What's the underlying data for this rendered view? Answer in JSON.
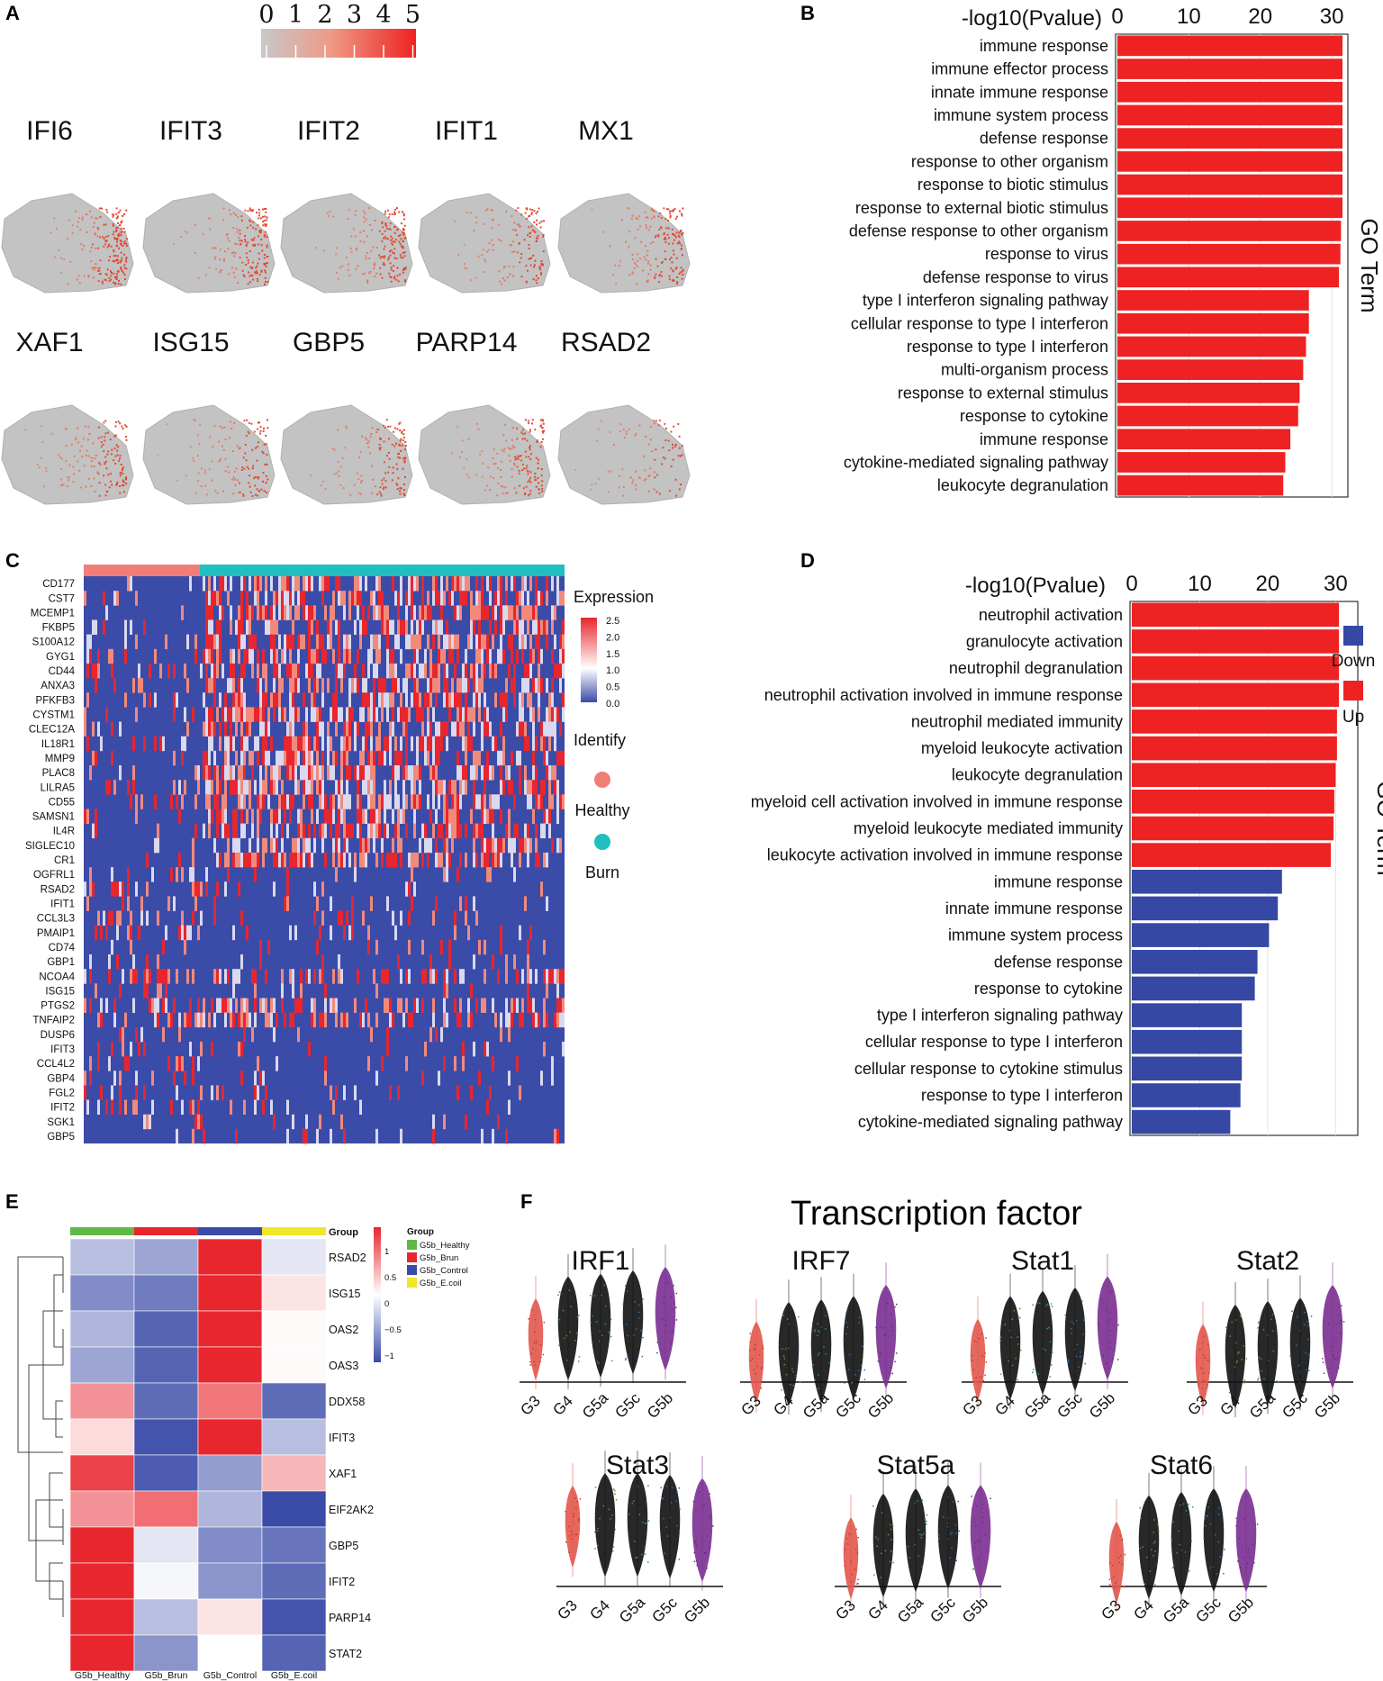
{
  "colors": {
    "red": "#ee2222",
    "blue": "#3548a4",
    "heat_red": "#e8262e",
    "grey": "#c3c3c3",
    "healthy": "#f07e76",
    "burn": "#1fbfbf"
  },
  "panel_a": {
    "letter": "A",
    "scale_ticks": [
      "0",
      "1",
      "2",
      "3",
      "4",
      "5"
    ],
    "genes_row1": [
      "IFI6",
      "IFIT3",
      "IFIT2",
      "IFIT1",
      "MX1"
    ],
    "genes_row2": [
      "XAF1",
      "ISG15",
      "GBP5",
      "PARP14",
      "RSAD2"
    ]
  },
  "panel_c": {
    "letter": "C",
    "legend_title": "Expression",
    "legend_ticks": [
      "2.5",
      "2.0",
      "1.5",
      "1.0",
      "0.5",
      "0.0"
    ],
    "identify_title": "Identify",
    "group_labels": [
      "Healthy",
      "Burn"
    ],
    "genes": [
      "CD177",
      "CST7",
      "MCEMP1",
      "FKBP5",
      "S100A12",
      "GYG1",
      "CD44",
      "ANXA3",
      "PFKFB3",
      "CYSTM1",
      "CLEC12A",
      "IL18R1",
      "MMP9",
      "PLAC8",
      "LILRA5",
      "CD55",
      "SAMSN1",
      "IL4R",
      "SIGLEC10",
      "CR1",
      "OGFRL1",
      "RSAD2",
      "IFIT1",
      "CCL3L3",
      "PMAIP1",
      "CD74",
      "GBP1",
      "NCOA4",
      "ISG15",
      "PTGS2",
      "TNFAIP2",
      "DUSP6",
      "IFIT3",
      "CCL4L2",
      "GBP4",
      "FGL2",
      "IFIT2",
      "SGK1",
      "GBP5"
    ]
  },
  "panel_e": {
    "letter": "E",
    "group_header": "Group",
    "legend_title": "Group",
    "legend_items": [
      "G5b_Healthy",
      "G5b_Brun",
      "G5b_Control",
      "G5b_E.coil"
    ],
    "colorbar_ticks": [
      "1",
      "0.5",
      "0",
      "−0.5",
      "−1"
    ],
    "columns": [
      "G5b_Healthy",
      "G5b_Brun",
      "G5b_Control",
      "G5b_E.coil"
    ],
    "rows": [
      "RSAD2",
      "ISG15",
      "OAS2",
      "OAS3",
      "DDX58",
      "IFIT3",
      "XAF1",
      "EIF2AK2",
      "GBP5",
      "IFIT2",
      "PARP14",
      "STAT2"
    ]
  },
  "panel_f": {
    "letter": "F",
    "title": "Transcription factor",
    "groups": [
      "G3",
      "G4",
      "G5a",
      "G5c",
      "G5b"
    ],
    "factors": [
      "IRF1",
      "IRF7",
      "Stat1",
      "Stat2",
      "Stat3",
      "Stat5a",
      "Stat6"
    ]
  },
  "chart_data": [
    {
      "panel": "B",
      "type": "bar",
      "orientation": "horizontal",
      "title": "",
      "xlabel": "-log10(Pvalue)",
      "ylabel": "GO Term",
      "xlim": [
        0,
        32
      ],
      "xticks": [
        "0",
        "10",
        "20",
        "30"
      ],
      "categories": [
        "immune response",
        "immune effector process",
        "innate immune response",
        "immune system process",
        "defense response",
        "response to other organism",
        "response to biotic stimulus",
        "response to external biotic stimulus",
        "defense response to other organism",
        "response to virus",
        "defense response to virus",
        "type I interferon signaling pathway",
        "cellular response to type I interferon",
        "response to type I interferon",
        "multi-organism process",
        "response to external stimulus",
        "response to cytokine",
        "immune response",
        "cytokine-mediated signaling pathway",
        "leukocyte degranulation"
      ],
      "values": [
        31.5,
        31.5,
        31.5,
        31.5,
        31.5,
        31.5,
        31.5,
        31.5,
        31.3,
        31.2,
        31.0,
        26.8,
        26.8,
        26.4,
        26.0,
        25.5,
        25.3,
        24.2,
        23.5,
        23.2
      ],
      "color": "#ee2222"
    },
    {
      "panel": "D",
      "type": "bar",
      "orientation": "horizontal",
      "title": "",
      "xlabel": "-log10(Pvalue)",
      "ylabel": "GO Term",
      "xlim": [
        0,
        33
      ],
      "xticks": [
        "0",
        "10",
        "20",
        "30"
      ],
      "legend": [
        "Down",
        "Up"
      ],
      "categories": [
        "neutrophil activation",
        "granulocyte activation",
        "neutrophil degranulation",
        "neutrophil activation involved in immune response",
        "neutrophil mediated immunity",
        "myeloid leukocyte activation",
        "leukocyte degranulation",
        "myeloid cell activation involved in immune response",
        "myeloid leukocyte mediated immunity",
        "leukocyte activation involved in immune response",
        "immune response",
        "innate immune response",
        "immune system process",
        "defense response",
        "response to cytokine",
        "type I interferon signaling pathway",
        "cellular response to type I interferon",
        "cellular response to cytokine stimulus",
        "response to type I interferon",
        "cytokine-mediated signaling pathway"
      ],
      "values": [
        30.5,
        30.5,
        30.5,
        30.5,
        30.2,
        30.2,
        30.0,
        29.8,
        29.7,
        29.3,
        22.1,
        21.5,
        20.2,
        18.5,
        18.1,
        16.2,
        16.2,
        16.2,
        16.0,
        14.5
      ],
      "direction": [
        "Up",
        "Up",
        "Up",
        "Up",
        "Up",
        "Up",
        "Up",
        "Up",
        "Up",
        "Up",
        "Down",
        "Down",
        "Down",
        "Down",
        "Down",
        "Down",
        "Down",
        "Down",
        "Down",
        "Down"
      ]
    },
    {
      "panel": "E",
      "type": "heatmap",
      "rows": [
        "RSAD2",
        "ISG15",
        "OAS2",
        "OAS3",
        "DDX58",
        "IFIT3",
        "XAF1",
        "EIF2AK2",
        "GBP5",
        "IFIT2",
        "PARP14",
        "STAT2"
      ],
      "columns": [
        "G5b_Healthy",
        "G5b_Brun",
        "G5b_Control",
        "G5b_E.coil"
      ],
      "values": [
        [
          -0.4,
          -0.55,
          1.3,
          -0.15
        ],
        [
          -0.7,
          -0.8,
          1.3,
          0.15
        ],
        [
          -0.45,
          -0.95,
          1.3,
          0.03
        ],
        [
          -0.55,
          -0.95,
          1.3,
          0.03
        ],
        [
          0.6,
          -0.9,
          0.75,
          -0.9
        ],
        [
          0.2,
          -1.05,
          1.2,
          -0.4
        ],
        [
          1.05,
          -1.0,
          -0.6,
          0.4
        ],
        [
          0.6,
          0.8,
          -0.45,
          -1.1
        ],
        [
          1.3,
          -0.15,
          -0.7,
          -0.85
        ],
        [
          1.3,
          -0.05,
          -0.65,
          -0.9
        ],
        [
          1.25,
          -0.4,
          0.15,
          -1.05
        ],
        [
          1.3,
          -0.65,
          0.0,
          -0.95
        ]
      ],
      "vlim": [
        -1,
        1
      ]
    },
    {
      "panel": "F",
      "type": "violin",
      "title": "Transcription factor",
      "categories": [
        "G3",
        "G4",
        "G5a",
        "G5c",
        "G5b"
      ],
      "series": [
        {
          "name": "IRF1",
          "medians": [
            0.42,
            0.55,
            0.58,
            0.62,
            0.66
          ]
        },
        {
          "name": "IRF7",
          "medians": [
            0.15,
            0.25,
            0.28,
            0.32,
            0.45
          ]
        },
        {
          "name": "Stat1",
          "medians": [
            0.18,
            0.32,
            0.38,
            0.42,
            0.55
          ]
        },
        {
          "name": "Stat2",
          "medians": [
            0.12,
            0.22,
            0.26,
            0.3,
            0.45
          ]
        },
        {
          "name": "Stat3",
          "medians": [
            0.62,
            0.64,
            0.64,
            0.62,
            0.58
          ]
        },
        {
          "name": "Stat5a",
          "medians": [
            0.25,
            0.4,
            0.46,
            0.5,
            0.5
          ]
        },
        {
          "name": "Stat6",
          "medians": [
            0.2,
            0.38,
            0.42,
            0.46,
            0.46
          ]
        }
      ]
    }
  ]
}
